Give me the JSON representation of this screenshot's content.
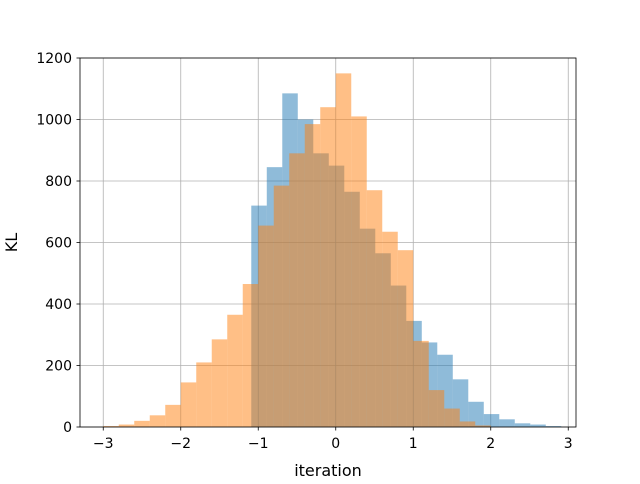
{
  "chart_data": {
    "type": "bar",
    "subtype": "overlaid-histogram",
    "title": "",
    "xlabel": "iteration",
    "ylabel": "KL",
    "xlim": [
      -3.3,
      3.1
    ],
    "ylim": [
      0,
      1200
    ],
    "xticks": [
      -3,
      -2,
      -1,
      0,
      1,
      2,
      3
    ],
    "yticks": [
      0,
      200,
      400,
      600,
      800,
      1000,
      1200
    ],
    "xtick_labels": [
      "−3",
      "−2",
      "−1",
      "0",
      "1",
      "2",
      "3"
    ],
    "ytick_labels": [
      "0",
      "200",
      "400",
      "600",
      "800",
      "1000",
      "1200"
    ],
    "grid": true,
    "legend": "none",
    "series": [
      {
        "color": "#1f77b4",
        "opacity": 0.5,
        "bins": [
          [
            -1.09,
            -0.89,
            720
          ],
          [
            -0.89,
            -0.69,
            845
          ],
          [
            -0.69,
            -0.49,
            1085
          ],
          [
            -0.49,
            -0.29,
            1000
          ],
          [
            -0.29,
            -0.09,
            890
          ],
          [
            -0.09,
            0.11,
            850
          ],
          [
            0.11,
            0.31,
            765
          ],
          [
            0.31,
            0.51,
            645
          ],
          [
            0.51,
            0.71,
            565
          ],
          [
            0.71,
            0.91,
            460
          ],
          [
            0.91,
            1.11,
            345
          ],
          [
            1.11,
            1.31,
            275
          ],
          [
            1.31,
            1.51,
            235
          ],
          [
            1.51,
            1.71,
            155
          ],
          [
            1.71,
            1.91,
            82
          ],
          [
            1.91,
            2.11,
            42
          ],
          [
            2.11,
            2.31,
            25
          ],
          [
            2.31,
            2.51,
            12
          ],
          [
            2.51,
            2.71,
            8
          ],
          [
            2.71,
            2.91,
            3
          ]
        ]
      },
      {
        "color": "#ff7f0e",
        "opacity": 0.5,
        "bins": [
          [
            -3.0,
            -2.8,
            3
          ],
          [
            -2.8,
            -2.6,
            8
          ],
          [
            -2.6,
            -2.4,
            20
          ],
          [
            -2.4,
            -2.2,
            38
          ],
          [
            -2.2,
            -2.0,
            72
          ],
          [
            -2.0,
            -1.8,
            145
          ],
          [
            -1.8,
            -1.6,
            210
          ],
          [
            -1.6,
            -1.4,
            285
          ],
          [
            -1.4,
            -1.2,
            365
          ],
          [
            -1.2,
            -1.0,
            465
          ],
          [
            -1.0,
            -0.8,
            655
          ],
          [
            -0.8,
            -0.6,
            785
          ],
          [
            -0.6,
            -0.4,
            890
          ],
          [
            -0.4,
            -0.2,
            985
          ],
          [
            -0.2,
            0.0,
            1040
          ],
          [
            0.0,
            0.2,
            1150
          ],
          [
            0.2,
            0.4,
            1010
          ],
          [
            0.4,
            0.6,
            770
          ],
          [
            0.6,
            0.8,
            635
          ],
          [
            0.8,
            1.0,
            575
          ],
          [
            1.0,
            1.2,
            280
          ],
          [
            1.2,
            1.4,
            120
          ],
          [
            1.4,
            1.6,
            60
          ],
          [
            1.6,
            1.8,
            18
          ],
          [
            1.8,
            2.0,
            5
          ]
        ]
      }
    ]
  }
}
